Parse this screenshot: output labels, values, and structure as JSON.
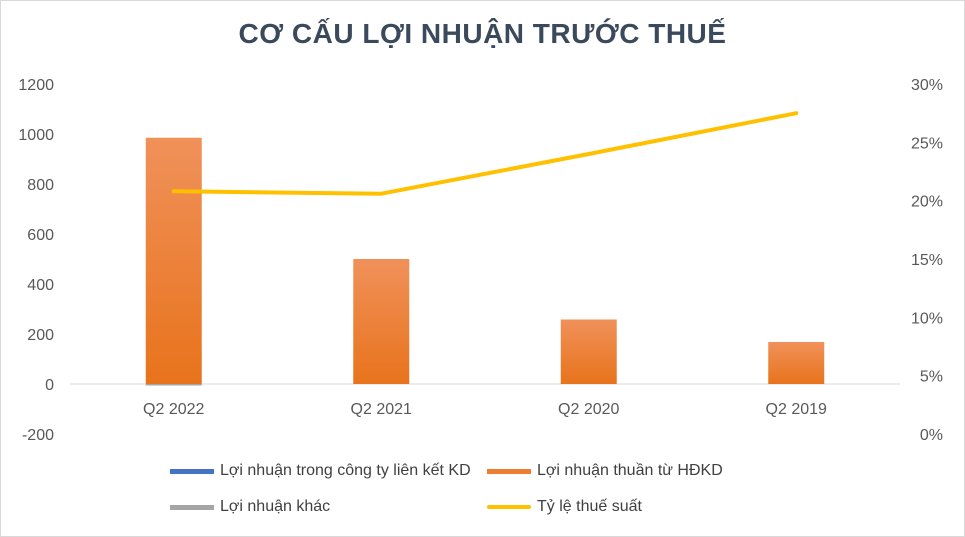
{
  "chart_data": {
    "type": "bar",
    "title": "CƠ CẤU LỢI NHUẬN TRƯỚC THUẾ",
    "categories": [
      "Q2 2022",
      "Q2 2021",
      "Q2 2020",
      "Q2 2019"
    ],
    "series": [
      {
        "name": "Lợi nhuận trong công ty liên kết KD",
        "kind": "bar",
        "axis": "left",
        "color": "#4472c4",
        "values": [
          0,
          0,
          0,
          0
        ]
      },
      {
        "name": "Lợi nhuận thuần từ HĐKD",
        "kind": "bar",
        "axis": "left",
        "color": "#ed7d31",
        "values": [
          985,
          500,
          258,
          168
        ]
      },
      {
        "name": "Lợi nhuận khác",
        "kind": "bar",
        "axis": "left",
        "color": "#a5a5a5",
        "values": [
          -3,
          0,
          0,
          0
        ]
      },
      {
        "name": "Tỷ lệ thuế suất",
        "kind": "line",
        "axis": "right",
        "color": "#ffc000",
        "values": [
          0.208,
          0.206,
          0.24,
          0.275
        ]
      }
    ],
    "y_left": {
      "min": -200,
      "max": 1200,
      "ticks": [
        "-200",
        "0",
        "200",
        "400",
        "600",
        "800",
        "1000",
        "1200"
      ]
    },
    "y_right": {
      "min": 0,
      "max": 0.3,
      "ticks": [
        "0%",
        "5%",
        "10%",
        "15%",
        "20%",
        "25%",
        "30%"
      ],
      "format": "percent"
    },
    "grid": false,
    "legend_position": "bottom"
  }
}
